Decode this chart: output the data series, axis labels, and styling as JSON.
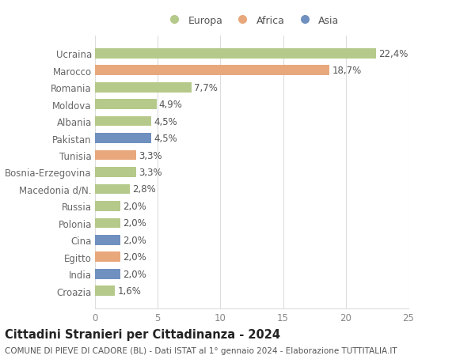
{
  "categories": [
    "Croazia",
    "India",
    "Egitto",
    "Cina",
    "Polonia",
    "Russia",
    "Macedonia d/N.",
    "Bosnia-Erzegovina",
    "Tunisia",
    "Pakistan",
    "Albania",
    "Moldova",
    "Romania",
    "Marocco",
    "Ucraina"
  ],
  "values": [
    1.6,
    2.0,
    2.0,
    2.0,
    2.0,
    2.0,
    2.8,
    3.3,
    3.3,
    4.5,
    4.5,
    4.9,
    7.7,
    18.7,
    22.4
  ],
  "colors": [
    "#b5c98a",
    "#7090c0",
    "#e8a87c",
    "#7090c0",
    "#b5c98a",
    "#b5c98a",
    "#b5c98a",
    "#b5c98a",
    "#e8a87c",
    "#7090c0",
    "#b5c98a",
    "#b5c98a",
    "#b5c98a",
    "#e8a87c",
    "#b5c98a"
  ],
  "labels": [
    "1,6%",
    "2,0%",
    "2,0%",
    "2,0%",
    "2,0%",
    "2,0%",
    "2,8%",
    "3,3%",
    "3,3%",
    "4,5%",
    "4,5%",
    "4,9%",
    "7,7%",
    "18,7%",
    "22,4%"
  ],
  "legend_labels": [
    "Europa",
    "Africa",
    "Asia"
  ],
  "legend_colors": [
    "#b5c98a",
    "#e8a87c",
    "#7090c0"
  ],
  "title": "Cittadini Stranieri per Cittadinanza - 2024",
  "subtitle": "COMUNE DI PIEVE DI CADORE (BL) - Dati ISTAT al 1° gennaio 2024 - Elaborazione TUTTITALIA.IT",
  "xlim": [
    0,
    25
  ],
  "xticks": [
    0,
    5,
    10,
    15,
    20,
    25
  ],
  "background_color": "#ffffff",
  "bar_height": 0.6,
  "grid_color": "#dddddd",
  "label_fontsize": 8.5,
  "tick_fontsize": 8.5,
  "ylabel_fontsize": 8.5,
  "title_fontsize": 10.5,
  "subtitle_fontsize": 7.5
}
